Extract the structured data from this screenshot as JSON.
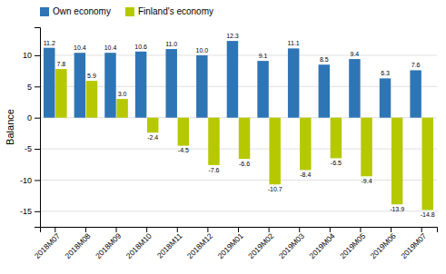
{
  "chart_data": {
    "type": "bar",
    "ylabel": "Balance",
    "categories": [
      "2018M07",
      "2018M08",
      "2018M09",
      "2018M10",
      "2018M11",
      "2018M12",
      "2019M01",
      "2019M02",
      "2019M03",
      "2019M04",
      "2019M05",
      "2019M06",
      "2019M07"
    ],
    "series": [
      {
        "name": "Own economy",
        "color": "#2e75b6",
        "values": [
          11.2,
          10.4,
          10.4,
          10.6,
          11.0,
          10.0,
          12.3,
          9.1,
          11.1,
          8.5,
          9.4,
          6.3,
          7.6
        ],
        "value_labels": [
          "11.2",
          "10.4",
          "10.4",
          "10.6",
          "11.0",
          "10.0",
          "12.3",
          "9.1",
          "11.1",
          "8.5",
          "9.4",
          "6.3",
          "7.6"
        ]
      },
      {
        "name": "Finland's economy",
        "color": "#b5c800",
        "values": [
          7.8,
          5.9,
          3.0,
          -2.4,
          -4.5,
          -7.6,
          -6.6,
          -10.7,
          -8.4,
          -6.5,
          -9.4,
          -13.9,
          -14.8
        ],
        "value_labels": [
          "7.8",
          "5.9",
          "3.0",
          "-2.4",
          "-4.5",
          "-7.6",
          "-6.6",
          "-10.7",
          "-8.4",
          "-6.5",
          "-9.4",
          "-13.9",
          "-14.8"
        ]
      }
    ],
    "ylim": [
      -17.5,
      14.5
    ],
    "yticks": [
      -15,
      -10,
      -5,
      0,
      5,
      10
    ],
    "grid": true,
    "legend": "top-left",
    "data_labels": true
  }
}
